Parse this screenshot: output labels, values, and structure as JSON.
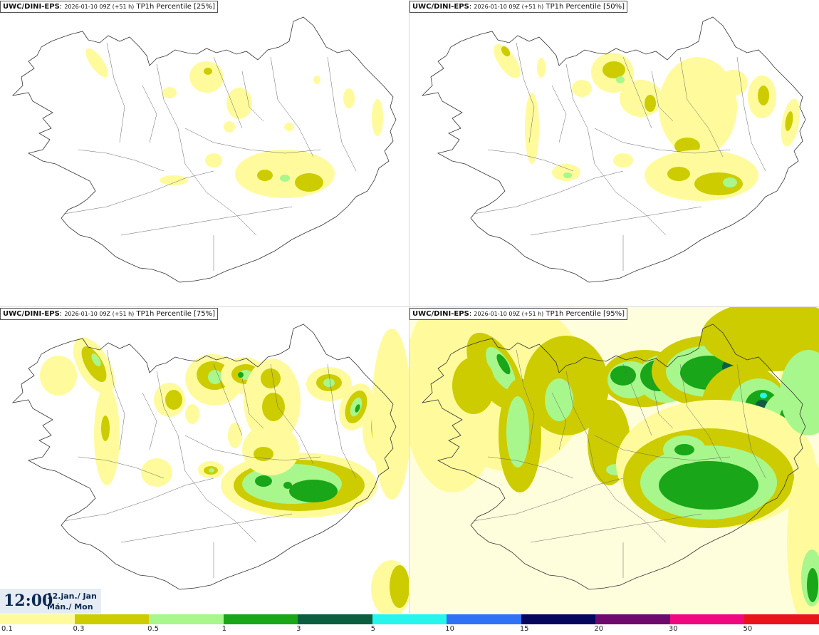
{
  "panels": [
    {
      "model": "UWC/DINI-EPS",
      "run": "2026-01-10 09Z (+51 h)",
      "field": "TP1h Percentile [25%]",
      "percentile": 25
    },
    {
      "model": "UWC/DINI-EPS",
      "run": "2026-01-10 09Z (+51 h)",
      "field": "TP1h Percentile [50%]",
      "percentile": 50
    },
    {
      "model": "UWC/DINI-EPS",
      "run": "2026-01-10 09Z (+51 h)",
      "field": "TP1h Percentile [75%]",
      "percentile": 75
    },
    {
      "model": "UWC/DINI-EPS",
      "run": "2026-01-10 09Z (+51 h)",
      "field": "TP1h Percentile [95%]",
      "percentile": 95
    }
  ],
  "valid_time": {
    "time": "12:00",
    "date": "12.jan./ Jan",
    "day": "Mán./ Mon"
  },
  "legend": {
    "ticks": [
      "0.1",
      "0.3",
      "0.5",
      "1",
      "3",
      "5",
      "10",
      "15",
      "20",
      "30",
      "50"
    ],
    "colors": [
      "#fffb9c",
      "#cccc00",
      "#a8f78c",
      "#19a619",
      "#0b5e40",
      "#26f5ee",
      "#2f72f5",
      "#07075f",
      "#6e0a6e",
      "#f00880",
      "#e8141a"
    ]
  }
}
